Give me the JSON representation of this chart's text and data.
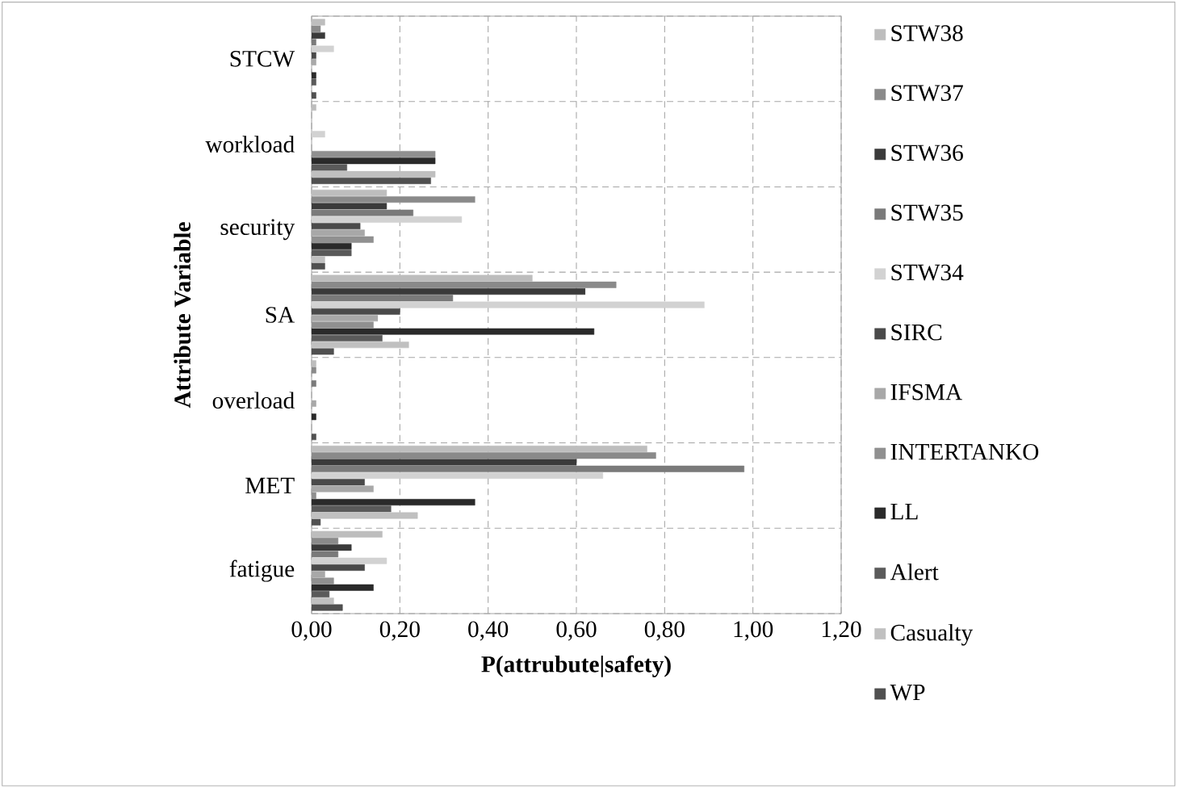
{
  "chart_data": {
    "type": "bar",
    "orientation": "horizontal",
    "xlabel": "P(attrubute|safety)",
    "ylabel": "Attribute Variable",
    "categories": [
      "STCW",
      "workload",
      "security",
      "SA",
      "overload",
      "MET",
      "fatigue"
    ],
    "xlim": [
      0,
      1.2
    ],
    "xticks": [
      {
        "value": 0,
        "label": "0,00"
      },
      {
        "value": 0.2,
        "label": "0,20"
      },
      {
        "value": 0.4,
        "label": "0,40"
      },
      {
        "value": 0.6,
        "label": "0,60"
      },
      {
        "value": 0.8,
        "label": "0,80"
      },
      {
        "value": 1.0,
        "label": "1,00"
      },
      {
        "value": 1.2,
        "label": "1,20"
      }
    ],
    "grid": true,
    "legend": "right",
    "series": [
      {
        "name": "STW38",
        "color": "#bdbdbd",
        "values": [
          0.03,
          0.01,
          0.17,
          0.5,
          0.01,
          0.76,
          0.16
        ]
      },
      {
        "name": "STW37",
        "color": "#8a8a8a",
        "values": [
          0.02,
          null,
          0.37,
          0.69,
          0.01,
          0.78,
          0.06
        ]
      },
      {
        "name": "STW36",
        "color": "#3a3a3a",
        "values": [
          0.03,
          null,
          0.17,
          0.62,
          null,
          0.6,
          0.09
        ]
      },
      {
        "name": "STW35",
        "color": "#7a7a7a",
        "values": [
          0.01,
          null,
          0.23,
          0.32,
          0.01,
          0.98,
          0.06
        ]
      },
      {
        "name": "STW34",
        "color": "#d2d2d2",
        "values": [
          0.05,
          0.03,
          0.34,
          0.89,
          null,
          0.66,
          0.17
        ]
      },
      {
        "name": "SIRC",
        "color": "#4a4a4a",
        "values": [
          0.01,
          null,
          0.11,
          0.2,
          null,
          0.12,
          0.12
        ]
      },
      {
        "name": "IFSMA",
        "color": "#a8a8a8",
        "values": [
          0.01,
          null,
          0.12,
          0.15,
          0.01,
          0.14,
          0.03
        ]
      },
      {
        "name": "INTERTANKO",
        "color": "#909090",
        "values": [
          null,
          0.28,
          0.14,
          0.14,
          null,
          0.01,
          0.05
        ]
      },
      {
        "name": "LL",
        "color": "#2a2a2a",
        "values": [
          0.01,
          0.28,
          0.09,
          0.64,
          0.01,
          0.37,
          0.14
        ]
      },
      {
        "name": "Alert",
        "color": "#5a5a5a",
        "values": [
          0.01,
          0.08,
          0.09,
          0.16,
          null,
          0.18,
          0.04
        ]
      },
      {
        "name": "Casualty",
        "color": "#c0c0c0",
        "values": [
          null,
          0.28,
          0.03,
          0.22,
          null,
          0.24,
          0.05
        ]
      },
      {
        "name": "WP",
        "color": "#505050",
        "values": [
          0.01,
          0.27,
          0.03,
          0.05,
          0.01,
          0.02,
          0.07
        ]
      }
    ]
  }
}
